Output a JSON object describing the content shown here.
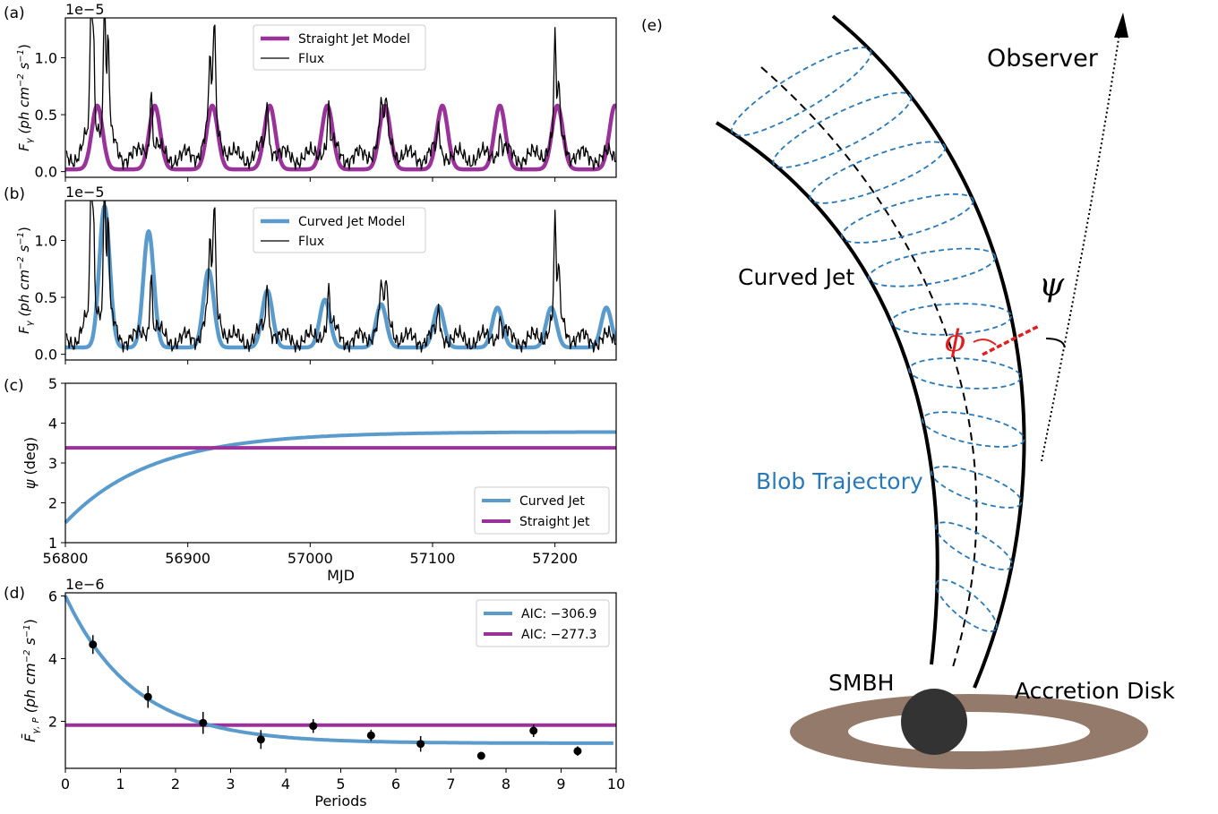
{
  "chart_data": [
    {
      "panel": "(a)",
      "type": "line",
      "offset_label": "1e−5",
      "ylabel": "F_γ (ph cm^-2 s^-1)",
      "ylim": [
        -0.05,
        1.35
      ],
      "xlim": [
        56800,
        57250
      ],
      "yticks": [
        0.0,
        0.5,
        1.0
      ],
      "ytick_labels": [
        "0.0",
        "0.5",
        "1.0"
      ],
      "legend": [
        "Straight Jet Model",
        "Flux"
      ],
      "legend_position": "top-center",
      "series": [
        {
          "name": "Straight Jet Model",
          "color": "#993399",
          "model": "periodic",
          "period": 47,
          "first_peak": 56826,
          "peak": 0.58,
          "base": 0.02,
          "width": 4.5
        },
        {
          "name": "Flux",
          "color": "#000000",
          "peaks": [
            [
              56821,
              1.3
            ],
            [
              56823,
              0.9
            ],
            [
              56832,
              1.32
            ],
            [
              56835,
              0.95
            ],
            [
              56870,
              0.68
            ],
            [
              56918,
              0.7
            ],
            [
              56921,
              0.55
            ],
            [
              56922,
              0.75
            ],
            [
              56965,
              0.56
            ],
            [
              57015,
              0.48
            ],
            [
              57058,
              0.45
            ],
            [
              57062,
              0.45
            ],
            [
              57105,
              0.36
            ],
            [
              57155,
              0.31
            ],
            [
              57200,
              0.96
            ],
            [
              57203,
              0.55
            ]
          ]
        }
      ]
    },
    {
      "panel": "(b)",
      "type": "line",
      "offset_label": "1e−5",
      "ylabel": "F_γ (ph cm^-2 s^-1)",
      "ylim": [
        -0.05,
        1.35
      ],
      "xlim": [
        56800,
        57250
      ],
      "yticks": [
        0.0,
        0.5,
        1.0
      ],
      "ytick_labels": [
        "0.0",
        "0.5",
        "1.0"
      ],
      "legend": [
        "Curved Jet Model",
        "Flux"
      ],
      "legend_position": "top-center",
      "series": [
        {
          "name": "Curved Jet Model",
          "color": "#5b9bcc",
          "peaks": [
            [
              56832,
              1.3
            ],
            [
              56868,
              1.08
            ],
            [
              56917,
              0.74
            ],
            [
              56965,
              0.56
            ],
            [
              57012,
              0.48
            ],
            [
              57058,
              0.44
            ],
            [
              57105,
              0.42
            ],
            [
              57153,
              0.41
            ],
            [
              57197,
              0.41
            ],
            [
              57242,
              0.41
            ]
          ],
          "base": 0.06
        },
        {
          "name": "Flux",
          "color": "#000000"
        }
      ]
    },
    {
      "panel": "(c)",
      "type": "line",
      "ylabel": "ψ (deg)",
      "xlabel": "MJD",
      "xlim": [
        56800,
        57250
      ],
      "ylim": [
        1,
        5
      ],
      "xticks": [
        56800,
        56900,
        57000,
        57100,
        57200
      ],
      "xtick_labels": [
        "56800",
        "56900",
        "57000",
        "57100",
        "57200"
      ],
      "yticks": [
        1,
        2,
        3,
        4,
        5
      ],
      "ytick_labels": [
        "1",
        "2",
        "3",
        "4",
        "5"
      ],
      "legend": [
        "Curved Jet",
        "Straight Jet"
      ],
      "legend_position": "lower-right",
      "series": [
        {
          "name": "Curved Jet",
          "color": "#5b9bcc",
          "start": 1.5,
          "asymptote": 3.78,
          "tau": 70
        },
        {
          "name": "Straight Jet",
          "color": "#993399",
          "value": 3.38
        }
      ]
    },
    {
      "panel": "(d)",
      "type": "scatter",
      "offset_label": "1e−6",
      "ylabel": "F̄_γ,P (ph cm^-2 s^-1)",
      "xlabel": "Periods",
      "xlim": [
        0,
        10
      ],
      "ylim": [
        0.5,
        6.1
      ],
      "xticks": [
        0,
        1,
        2,
        3,
        4,
        5,
        6,
        7,
        8,
        9,
        10
      ],
      "xtick_labels": [
        "0",
        "1",
        "2",
        "3",
        "4",
        "5",
        "6",
        "7",
        "8",
        "9",
        "10"
      ],
      "yticks": [
        2,
        4,
        6
      ],
      "ytick_labels": [
        "2",
        "4",
        "6"
      ],
      "legend": [
        "AIC: −306.9",
        "AIC: −277.3"
      ],
      "legend_position": "top-right",
      "points": [
        {
          "x": 0.5,
          "y": 4.45,
          "err": 0.3
        },
        {
          "x": 1.5,
          "y": 2.78,
          "err": 0.35
        },
        {
          "x": 2.5,
          "y": 1.95,
          "err": 0.35
        },
        {
          "x": 3.55,
          "y": 1.42,
          "err": 0.3
        },
        {
          "x": 4.5,
          "y": 1.85,
          "err": 0.22
        },
        {
          "x": 5.55,
          "y": 1.55,
          "err": 0.18
        },
        {
          "x": 6.45,
          "y": 1.28,
          "err": 0.25
        },
        {
          "x": 7.55,
          "y": 0.9,
          "err": 0.12
        },
        {
          "x": 8.5,
          "y": 1.7,
          "err": 0.2
        },
        {
          "x": 9.3,
          "y": 1.05,
          "err": 0.15
        }
      ],
      "series": [
        {
          "name": "AIC: −306.9",
          "color": "#5b9bcc",
          "start": 6.0,
          "asymptote": 1.3,
          "tau": 1.25
        },
        {
          "name": "AIC: −277.3",
          "color": "#993399",
          "value": 1.88
        }
      ]
    }
  ],
  "diagram": {
    "panel": "(e)",
    "labels": {
      "observer": "Observer",
      "curved_jet": "Curved Jet",
      "blob_trajectory": "Blob Trajectory",
      "smbh": "SMBH",
      "accretion_disk": "Accretion Disk",
      "psi": "ψ",
      "phi": "ϕ"
    },
    "colors": {
      "blob": "#2a78b5",
      "phi": "#e02020",
      "disk": "#947a6a",
      "smbh": "#333333"
    }
  }
}
